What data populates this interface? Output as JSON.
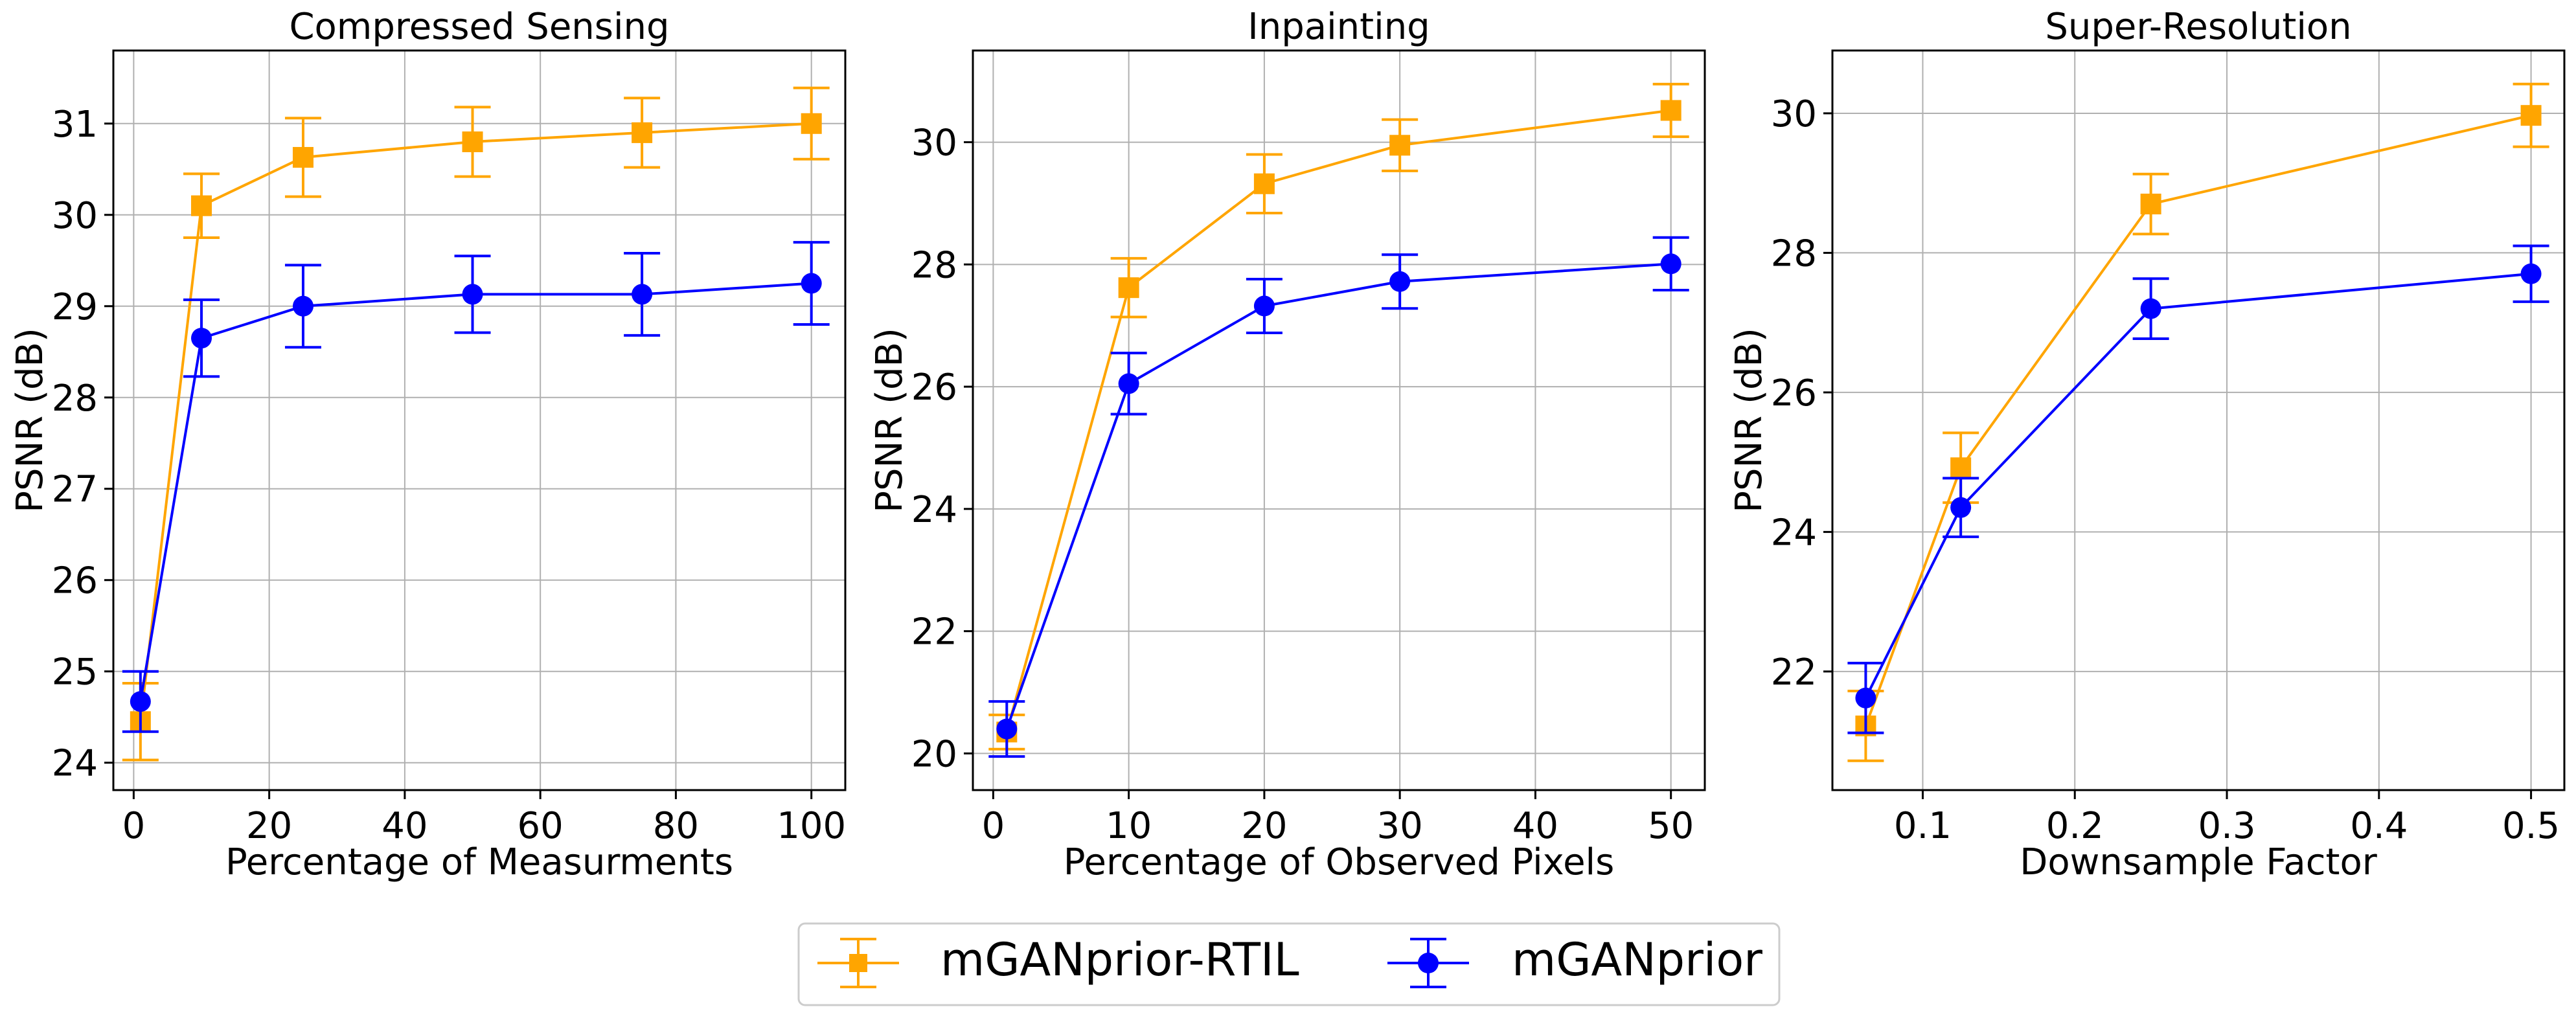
{
  "colors": {
    "rtil": "#FFA500",
    "base": "#0000FF",
    "grid": "#b0b0b0",
    "axis": "#000000"
  },
  "legend": {
    "placement": "bottom-center",
    "entries": [
      "mGANprior-RTIL",
      "mGANprior"
    ]
  },
  "chart_data": [
    {
      "type": "line",
      "title": "Compressed Sensing",
      "xlabel": "Percentage of Measurments",
      "ylabel": "PSNR (dB)",
      "xlim": [
        -3,
        105
      ],
      "ylim": [
        23.7,
        31.8
      ],
      "xticks": [
        0,
        20,
        40,
        60,
        80,
        100
      ],
      "xtick_labels": [
        "0",
        "20",
        "40",
        "60",
        "80",
        "100"
      ],
      "yticks": [
        24,
        25,
        26,
        27,
        28,
        29,
        30,
        31
      ],
      "ytick_labels": [
        "24",
        "25",
        "26",
        "27",
        "28",
        "29",
        "30",
        "31"
      ],
      "grid": true,
      "x": [
        1,
        10,
        25,
        50,
        75,
        100
      ],
      "series": [
        {
          "name": "mGANprior-RTIL",
          "values": [
            24.45,
            30.1,
            30.63,
            30.8,
            30.9,
            31.0
          ],
          "err": [
            0.42,
            0.35,
            0.43,
            0.38,
            0.38,
            0.39
          ]
        },
        {
          "name": "mGANprior",
          "values": [
            24.67,
            28.65,
            29.0,
            29.13,
            29.13,
            29.25
          ],
          "err": [
            0.33,
            0.42,
            0.45,
            0.42,
            0.45,
            0.45
          ]
        }
      ]
    },
    {
      "type": "line",
      "title": "Inpainting",
      "xlabel": "Percentage of Observed Pixels",
      "ylabel": "PSNR (dB)",
      "xlim": [
        -1.5,
        52.5
      ],
      "ylim": [
        19.4,
        31.5
      ],
      "xticks": [
        0,
        10,
        20,
        30,
        40,
        50
      ],
      "xtick_labels": [
        "0",
        "10",
        "20",
        "30",
        "40",
        "50"
      ],
      "yticks": [
        20,
        22,
        24,
        26,
        28,
        30
      ],
      "ytick_labels": [
        "20",
        "22",
        "24",
        "26",
        "28",
        "30"
      ],
      "grid": true,
      "x": [
        1,
        10,
        20,
        30,
        50
      ],
      "series": [
        {
          "name": "mGANprior-RTIL",
          "values": [
            20.35,
            27.62,
            29.32,
            29.95,
            30.52
          ],
          "err": [
            0.28,
            0.48,
            0.48,
            0.42,
            0.43
          ]
        },
        {
          "name": "mGANprior",
          "values": [
            20.4,
            26.05,
            27.32,
            27.72,
            28.01
          ],
          "err": [
            0.45,
            0.5,
            0.44,
            0.44,
            0.43
          ]
        }
      ]
    },
    {
      "type": "line",
      "title": "Super-Resolution",
      "xlabel": "Downsample Factor",
      "ylabel": "PSNR (dB)",
      "xlim": [
        0.0406,
        0.5219
      ],
      "ylim": [
        20.3,
        30.9
      ],
      "xticks": [
        0.1,
        0.2,
        0.3,
        0.4,
        0.5
      ],
      "xtick_labels": [
        "0.1",
        "0.2",
        "0.3",
        "0.4",
        "0.5"
      ],
      "yticks": [
        22,
        24,
        26,
        28,
        30
      ],
      "ytick_labels": [
        "22",
        "24",
        "26",
        "28",
        "30"
      ],
      "grid": true,
      "x": [
        0.0625,
        0.125,
        0.25,
        0.5
      ],
      "series": [
        {
          "name": "mGANprior-RTIL",
          "values": [
            21.22,
            24.92,
            28.7,
            29.97
          ],
          "err": [
            0.5,
            0.5,
            0.43,
            0.45
          ]
        },
        {
          "name": "mGANprior",
          "values": [
            21.62,
            24.35,
            27.2,
            27.7
          ],
          "err": [
            0.5,
            0.42,
            0.43,
            0.4
          ]
        }
      ]
    }
  ]
}
